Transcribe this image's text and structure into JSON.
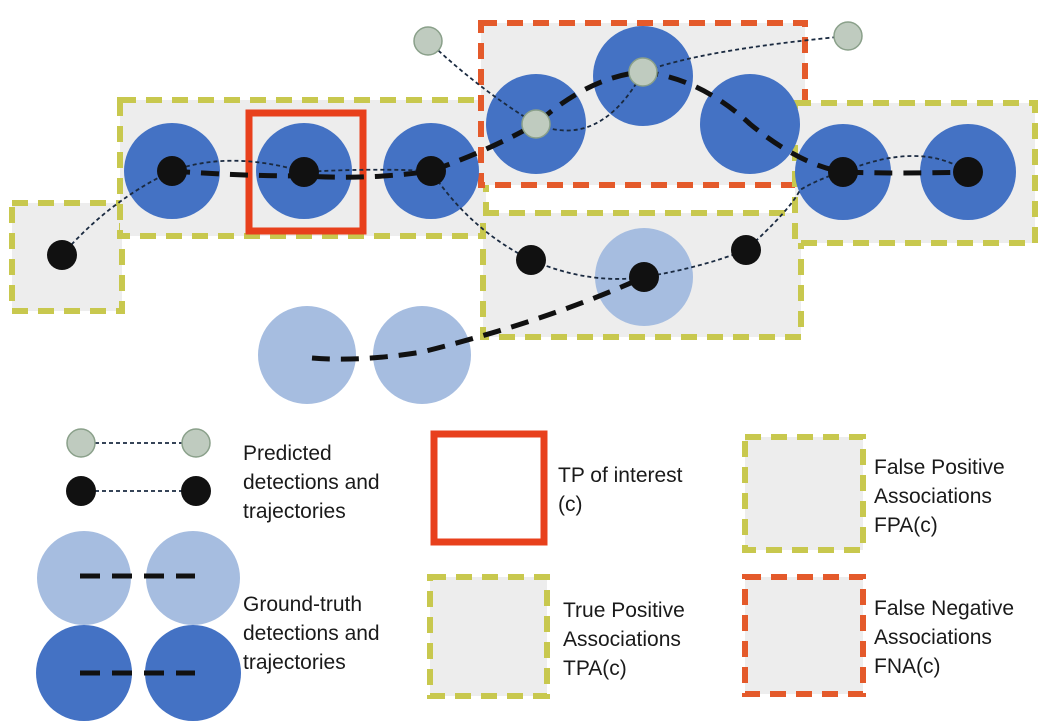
{
  "colors": {
    "gt_dark": "#4472C4",
    "gt_light": "#A6BDE0",
    "pred_dark": "#111111",
    "pred_light": "#BFCBBF",
    "box_fill": "#EDEDED",
    "tpa_border": "#C8C84E",
    "fna_border": "#E45A2B",
    "tp_border": "#E8401C",
    "line_color": "#1a2a40"
  },
  "legend": {
    "predicted": [
      "Predicted",
      "detections and",
      "trajectories"
    ],
    "ground_truth": [
      "Ground-truth",
      "detections and",
      "trajectories"
    ],
    "tp": [
      "TP of interest",
      "(c)"
    ],
    "tpa": [
      "True Positive",
      "Associations",
      "TPA(c)"
    ],
    "fpa": [
      "False Positive",
      "Associations",
      "FPA(c)"
    ],
    "fna": [
      "False Negative",
      "Associations",
      "FNA(c)"
    ]
  }
}
